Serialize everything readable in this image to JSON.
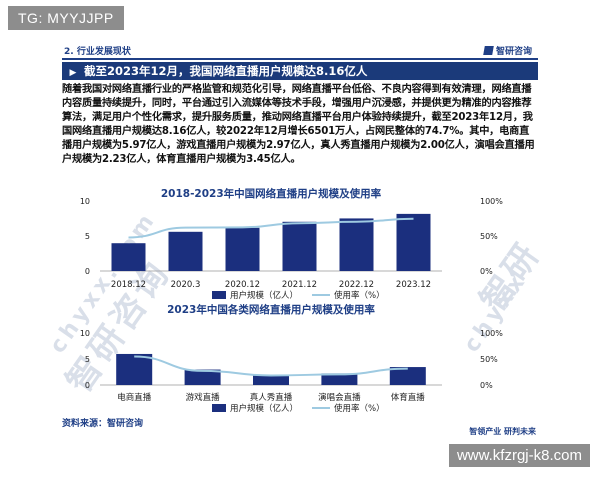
{
  "overlay": {
    "tag": "TG: MYYJJPP",
    "url": "www.kfzrgj-k8.com"
  },
  "section": {
    "label": "2. 行业发展现状",
    "brand": "智研咨询"
  },
  "headline": {
    "marker": "▶",
    "text": "截至2023年12月，我国网络直播用户规模达8.16亿人"
  },
  "paragraph": "随着我国对网络直播行业的严格监管和规范化引导，网络直播平台低俗、不良内容得到有效清理，网络直播内容质量持续提升，同时，平台通过引入流媒体等技术手段，增强用户沉浸感，并提供更为精准的内容推荐算法，满足用户个性化需求，提升服务质量，推动网络直播平台用户体验持续提升，截至2023年12月，我国网络直播用户规模达8.16亿人，较2022年12月增长6501万人，占网民整体的74.7%。其中，电商直播用户规模为5.97亿人，游戏直播用户规模为2.97亿人，真人秀直播用户规模为2.00亿人，演唱会直播用户规模为2.23亿人，体育直播用户规模为3.45亿人。",
  "watermarks": [
    "智研咨询",
    "chyxx.com",
    "智研",
    "chyxx"
  ],
  "colors": {
    "navy": "#1b3a7a",
    "bar": "#1b2f7e",
    "line": "#9ecae1"
  },
  "chart_data": [
    {
      "type": "bar",
      "title": "2018-2023年中国网络直播用户规模及使用率",
      "categories": [
        "2018.12",
        "2020.3",
        "2020.12",
        "2021.12",
        "2022.12",
        "2023.12"
      ],
      "series": [
        {
          "name": "用户规模（亿人）",
          "type": "bar",
          "axis": "left",
          "values": [
            3.97,
            5.6,
            6.17,
            7.03,
            7.51,
            8.16
          ]
        },
        {
          "name": "使用率（%）",
          "type": "line",
          "axis": "right",
          "values": [
            47.9,
            62.0,
            62.4,
            68.2,
            70.3,
            74.7
          ]
        }
      ],
      "left_ticks": [
        "0",
        "5",
        "10"
      ],
      "right_ticks": [
        "0%",
        "50%",
        "100%"
      ],
      "ylim_left": [
        0,
        10
      ],
      "ylim_right": [
        0,
        100
      ],
      "legend": "bottom"
    },
    {
      "type": "bar",
      "title": "2023年中国各类网络直播用户规模及使用率",
      "categories": [
        "电商直播",
        "游戏直播",
        "真人秀直播",
        "演唱会直播",
        "体育直播"
      ],
      "series": [
        {
          "name": "用户规模（亿人）",
          "type": "bar",
          "axis": "left",
          "values": [
            5.97,
            2.97,
            2.0,
            2.23,
            3.45
          ]
        },
        {
          "name": "使用率（%）",
          "type": "line",
          "axis": "right",
          "values": [
            54.7,
            27.2,
            18.3,
            20.4,
            31.6
          ]
        }
      ],
      "left_ticks": [
        "0",
        "5",
        "10"
      ],
      "right_ticks": [
        "0%",
        "50%",
        "100%"
      ],
      "ylim_left": [
        0,
        10
      ],
      "ylim_right": [
        0,
        100
      ],
      "legend": "bottom"
    }
  ],
  "source": "资料来源：智研咨询",
  "footer_brand": "智领产业 研判未来"
}
